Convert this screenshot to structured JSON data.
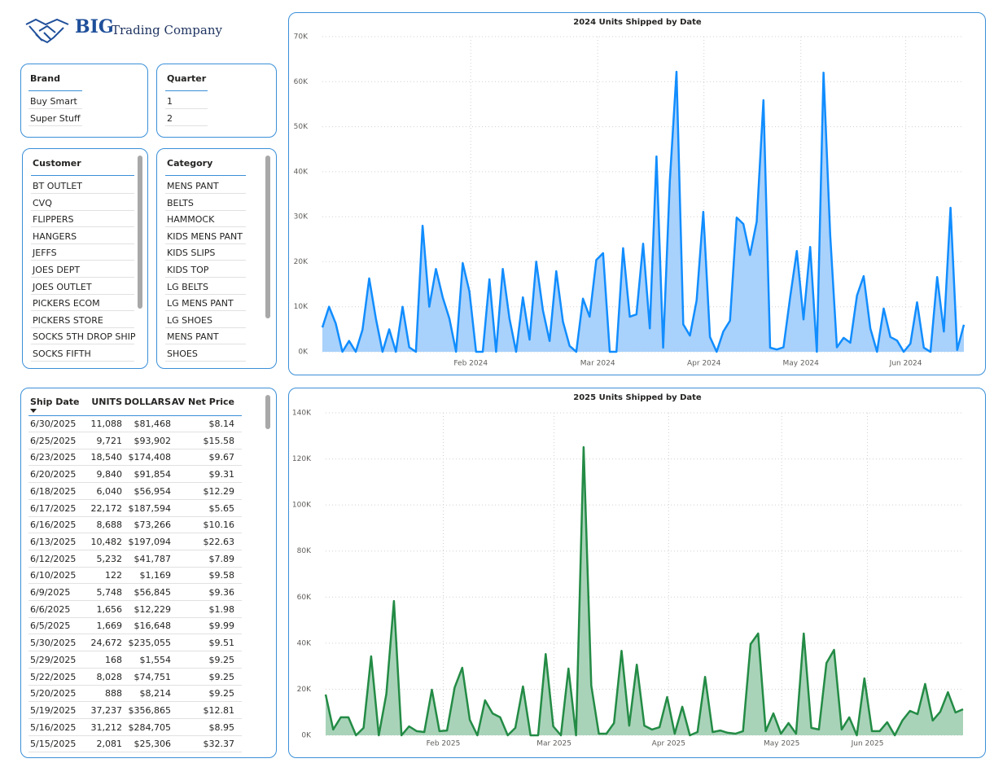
{
  "header": {
    "logo_title": "BIG",
    "logo_subtitle": "Trading Company"
  },
  "slicers": [
    {
      "title": "Brand",
      "items": [
        "Buy Smart",
        "Super Stuff"
      ]
    },
    {
      "title": "Quarter",
      "items": [
        "1",
        "2"
      ]
    },
    {
      "title": "Customer",
      "items": [
        "BT OUTLET",
        "CVQ",
        "FLIPPERS",
        "HANGERS",
        "JEFFS",
        "JOES DEPT",
        "JOES OUTLET",
        "PICKERS ECOM",
        "PICKERS STORE",
        "SOCKS 5TH DROP SHIP",
        "SOCKS FIFTH"
      ]
    },
    {
      "title": "Category",
      "items": [
        "MENS PANT",
        "BELTS",
        "HAMMOCK",
        "KIDS MENS PANT",
        "KIDS SLIPS",
        "KIDS TOP",
        "LG BELTS",
        "LG MENS PANT",
        "LG SHOES",
        "MENS PANT",
        "SHOES"
      ]
    }
  ],
  "table": {
    "columns": [
      "Ship Date",
      "UNITS",
      "DOLLARS",
      "AV Net Price"
    ],
    "rows": [
      [
        "6/30/2025",
        "11,088",
        "$81,468",
        "$8.14"
      ],
      [
        "6/25/2025",
        "9,721",
        "$93,902",
        "$15.58"
      ],
      [
        "6/23/2025",
        "18,540",
        "$174,408",
        "$9.67"
      ],
      [
        "6/20/2025",
        "9,840",
        "$91,854",
        "$9.31"
      ],
      [
        "6/18/2025",
        "6,040",
        "$56,954",
        "$12.29"
      ],
      [
        "6/17/2025",
        "22,172",
        "$187,594",
        "$5.65"
      ],
      [
        "6/16/2025",
        "8,688",
        "$73,266",
        "$10.16"
      ],
      [
        "6/13/2025",
        "10,482",
        "$197,094",
        "$22.63"
      ],
      [
        "6/12/2025",
        "5,232",
        "$41,787",
        "$7.89"
      ],
      [
        "6/10/2025",
        "122",
        "$1,169",
        "$9.58"
      ],
      [
        "6/9/2025",
        "5,748",
        "$56,845",
        "$9.36"
      ],
      [
        "6/6/2025",
        "1,656",
        "$12,229",
        "$1.98"
      ],
      [
        "6/5/2025",
        "1,669",
        "$16,648",
        "$9.99"
      ],
      [
        "5/30/2025",
        "24,672",
        "$235,055",
        "$9.51"
      ],
      [
        "5/29/2025",
        "168",
        "$1,554",
        "$9.25"
      ],
      [
        "5/22/2025",
        "8,028",
        "$74,751",
        "$9.25"
      ],
      [
        "5/20/2025",
        "888",
        "$8,214",
        "$9.25"
      ],
      [
        "5/19/2025",
        "37,237",
        "$356,865",
        "$12.81"
      ],
      [
        "5/16/2025",
        "31,212",
        "$284,705",
        "$8.95"
      ],
      [
        "5/15/2025",
        "2,081",
        "$25,306",
        "$32.37"
      ]
    ]
  },
  "chart_data": [
    {
      "type": "area",
      "title": "2024 Units Shipped by Date",
      "color": "#118dff",
      "fill_color": "#a8d1fb",
      "grid": true,
      "values": [
        5400,
        10000,
        6300,
        0,
        2400,
        0,
        4900,
        16300,
        7400,
        0,
        5000,
        0,
        10000,
        1000,
        0,
        28000,
        10000,
        18400,
        12100,
        7400,
        0,
        19700,
        13400,
        0,
        0,
        16100,
        0,
        18400,
        7400,
        0,
        12100,
        2700,
        20000,
        9200,
        2400,
        17900,
        6700,
        1300,
        0,
        11800,
        7800,
        20400,
        21900,
        0,
        0,
        23000,
        7800,
        8300,
        24000,
        5200,
        43400,
        900,
        38000,
        62200,
        6100,
        3600,
        11400,
        31100,
        3300,
        0,
        4500,
        6900,
        29800,
        28400,
        21500,
        28900,
        55900,
        900,
        500,
        1000,
        12100,
        22400,
        7200,
        23300,
        0,
        62000,
        25900,
        1000,
        3100,
        2000,
        12500,
        16800,
        5200,
        0,
        9600,
        3300,
        2500,
        0,
        1800,
        11000,
        900,
        0,
        16600,
        4500,
        32000,
        400,
        6000
      ],
      "xlim": [
        0,
        96
      ],
      "xticks": [
        {
          "value": 22.2,
          "label": "Feb 2024"
        },
        {
          "value": 41.2,
          "label": "Mar 2024"
        },
        {
          "value": 57.1,
          "label": "Apr 2024"
        },
        {
          "value": 71.6,
          "label": "May 2024"
        },
        {
          "value": 87.3,
          "label": "Jun 2024"
        }
      ],
      "ylim": [
        0,
        70000
      ],
      "yticks": [
        {
          "value": 0,
          "label": "0K"
        },
        {
          "value": 10000,
          "label": "10K"
        },
        {
          "value": 20000,
          "label": "20K"
        },
        {
          "value": 30000,
          "label": "30K"
        },
        {
          "value": 40000,
          "label": "40K"
        },
        {
          "value": 50000,
          "label": "50K"
        },
        {
          "value": 60000,
          "label": "60K"
        },
        {
          "value": 70000,
          "label": "70K"
        }
      ]
    },
    {
      "type": "area",
      "title": "2025 Units Shipped by Date",
      "color": "#238b45",
      "fill_color": "#a9d3b9",
      "grid": true,
      "values": [
        17700,
        2500,
        7800,
        7800,
        0,
        3200,
        34300,
        0,
        18000,
        58300,
        0,
        3900,
        1800,
        1400,
        19800,
        1800,
        2100,
        20800,
        29300,
        6700,
        0,
        15200,
        9500,
        7800,
        0,
        3200,
        21200,
        0,
        0,
        35300,
        3900,
        0,
        29000,
        0,
        125100,
        21600,
        700,
        700,
        5300,
        36700,
        4200,
        30700,
        4200,
        2500,
        3500,
        16600,
        700,
        12400,
        0,
        1400,
        25400,
        1400,
        2100,
        1100,
        700,
        1800,
        39600,
        44200,
        1800,
        9500,
        700,
        5300,
        700,
        44200,
        3200,
        2500,
        31400,
        37100,
        2500,
        7800,
        0,
        24700,
        1800,
        1800,
        5700,
        0,
        6400,
        10600,
        9200,
        22300,
        6400,
        10200,
        18700,
        9900,
        11300
      ],
      "xlim": [
        0,
        84
      ],
      "xticks": [
        {
          "value": 15.5,
          "label": "Feb 2025"
        },
        {
          "value": 30.1,
          "label": "Mar 2025"
        },
        {
          "value": 45.2,
          "label": "Apr 2025"
        },
        {
          "value": 60.1,
          "label": "May 2025"
        },
        {
          "value": 71.4,
          "label": "Jun 2025"
        }
      ],
      "ylim": [
        0,
        140000
      ],
      "yticks": [
        {
          "value": 0,
          "label": "0K"
        },
        {
          "value": 20000,
          "label": "20K"
        },
        {
          "value": 40000,
          "label": "40K"
        },
        {
          "value": 60000,
          "label": "60K"
        },
        {
          "value": 80000,
          "label": "80K"
        },
        {
          "value": 100000,
          "label": "100K"
        },
        {
          "value": 120000,
          "label": "120K"
        },
        {
          "value": 140000,
          "label": "140K"
        }
      ]
    }
  ]
}
